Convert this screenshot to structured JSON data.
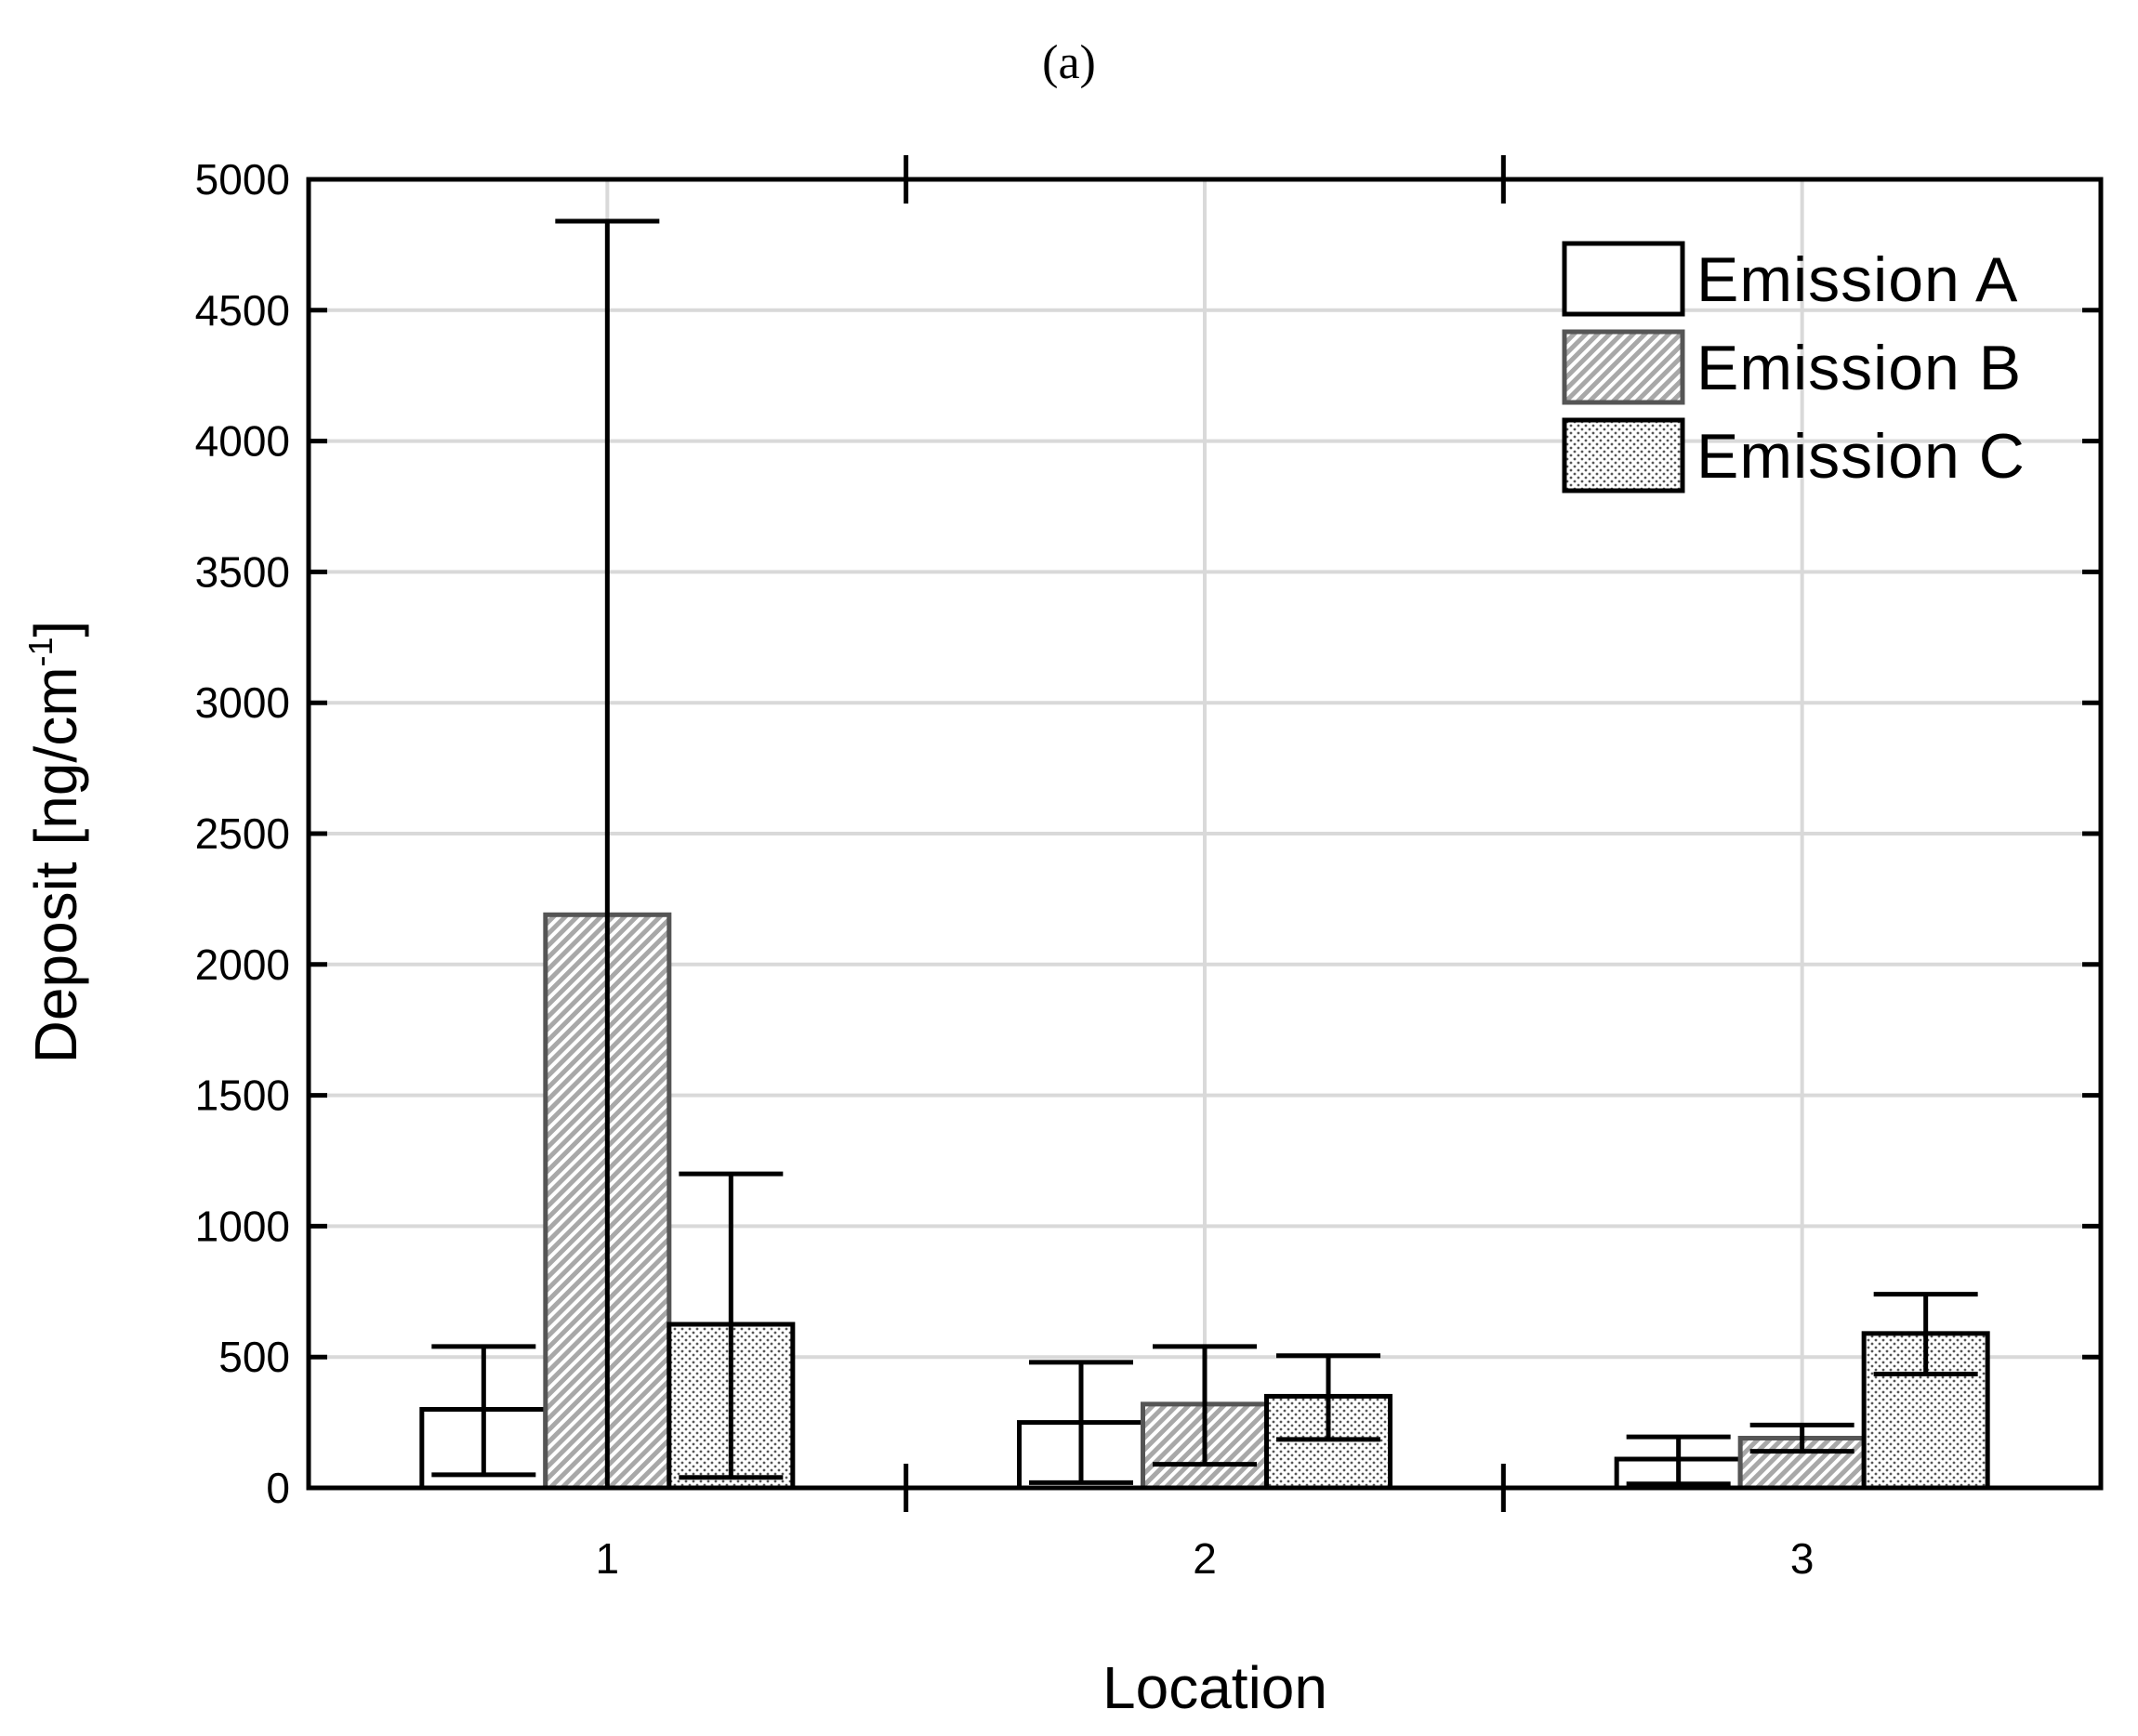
{
  "panel_label": "(a)",
  "chart_data": {
    "type": "bar",
    "categories": [
      "1",
      "2",
      "3"
    ],
    "series": [
      {
        "name": "Emission A",
        "values": [
          300,
          250,
          110
        ],
        "err_low": [
          50,
          20,
          15
        ],
        "err_high": [
          540,
          480,
          195
        ],
        "pattern": "none"
      },
      {
        "name": "Emission B",
        "values": [
          2190,
          320,
          190
        ],
        "err_low": [
          0,
          90,
          140
        ],
        "err_high": [
          4840,
          540,
          240
        ],
        "pattern": "hatch"
      },
      {
        "name": "Emission C",
        "values": [
          625,
          350,
          590
        ],
        "err_low": [
          40,
          185,
          435
        ],
        "err_high": [
          1200,
          505,
          740
        ],
        "pattern": "dots"
      }
    ],
    "xlabel": "Location",
    "ylabel": "Deposit [ng/cm",
    "ylabel_superscript": "-1",
    "ylabel_suffix": "]",
    "ylim": [
      0,
      5000
    ],
    "yticks": [
      0,
      500,
      1000,
      1500,
      2000,
      2500,
      3000,
      3500,
      4000,
      4500,
      5000
    ],
    "grid": true,
    "legend_position": "top-right",
    "colors": {
      "axis": "#000000",
      "grid": "#d9d9d9",
      "bar_b_edge": "#555555",
      "hatch_fill": "#a8a8a8",
      "dot_fill": "#555555"
    }
  }
}
